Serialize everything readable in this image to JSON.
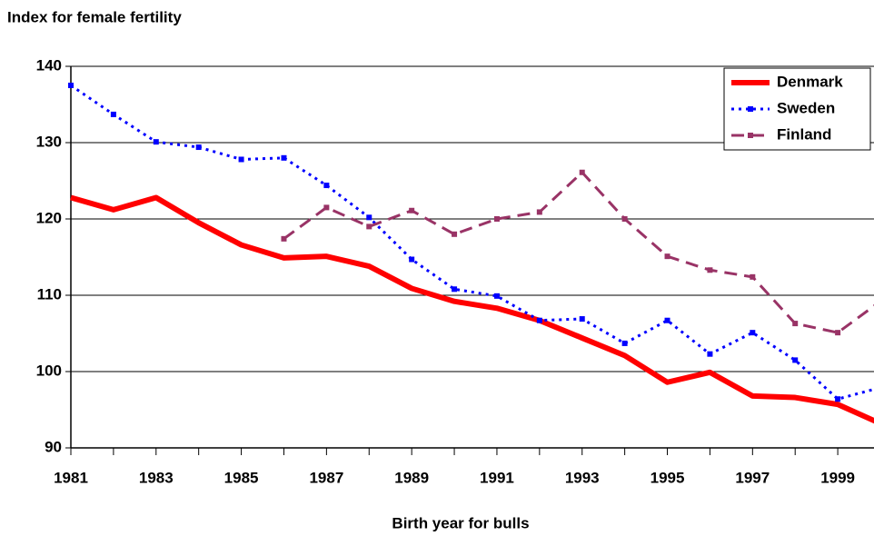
{
  "chart_data": {
    "type": "line",
    "y_axis_label": "Index for female fertility",
    "x_axis_label": "Birth year for bulls",
    "x": [
      1981,
      1982,
      1983,
      1984,
      1985,
      1986,
      1987,
      1988,
      1989,
      1990,
      1991,
      1992,
      1993,
      1994,
      1995,
      1996,
      1997,
      1998,
      1999,
      2000
    ],
    "series": [
      {
        "name": "Denmark",
        "color": "#ff0000",
        "values": [
          122.8,
          121.2,
          122.8,
          119.5,
          116.6,
          114.9,
          115.1,
          113.8,
          110.9,
          109.2,
          108.3,
          106.7,
          104.4,
          102.1,
          98.6,
          99.9,
          96.8,
          96.6,
          95.7,
          93.2
        ]
      },
      {
        "name": "Sweden",
        "color": "#0000ff",
        "values": [
          137.5,
          133.7,
          130.1,
          129.4,
          127.8,
          128.0,
          124.4,
          120.2,
          114.7,
          110.8,
          109.9,
          106.7,
          106.9,
          103.7,
          106.7,
          102.3,
          105.1,
          101.5,
          96.4,
          97.9
        ]
      },
      {
        "name": "Finland",
        "color": "#993366",
        "values": [
          null,
          null,
          null,
          null,
          null,
          117.4,
          121.5,
          119.0,
          121.1,
          118.0,
          120.0,
          120.9,
          126.1,
          120.0,
          115.1,
          113.3,
          112.4,
          106.3,
          105.1,
          109.2
        ]
      }
    ],
    "xlim": [
      1981,
      2000
    ],
    "xticks": [
      1981,
      1983,
      1985,
      1987,
      1989,
      1991,
      1993,
      1995,
      1997,
      1999
    ],
    "ylim": [
      90,
      140
    ],
    "yticks": [
      90,
      100,
      110,
      120,
      130,
      140
    ],
    "grid": true,
    "legend": "top-right"
  }
}
